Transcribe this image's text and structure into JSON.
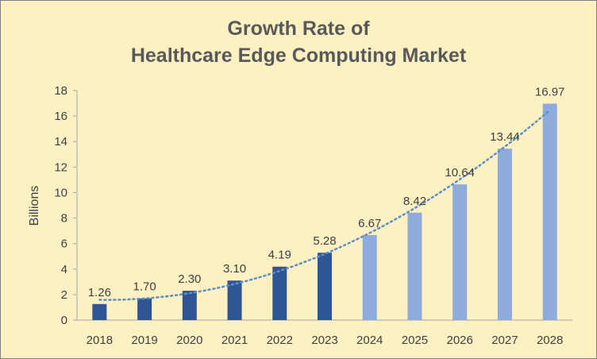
{
  "chart_data": {
    "type": "bar",
    "title_line1": "Growth Rate of",
    "title_line2": "Healthcare Edge Computing Market",
    "xlabel": "",
    "ylabel": "Billions",
    "ylim": [
      0,
      18
    ],
    "yticks": [
      "0",
      "2",
      "4",
      "6",
      "8",
      "10",
      "12",
      "14",
      "16",
      "18"
    ],
    "categories": [
      "2018",
      "2019",
      "2020",
      "2021",
      "2022",
      "2023",
      "2024",
      "2025",
      "2026",
      "2027",
      "2028"
    ],
    "values": [
      1.26,
      1.7,
      2.3,
      3.1,
      4.19,
      5.28,
      6.67,
      8.42,
      10.64,
      13.44,
      16.97
    ],
    "value_labels": [
      "1.26",
      "1.70",
      "2.30",
      "3.10",
      "4.19",
      "5.28",
      "6.67",
      "8.42",
      "10.64",
      "13.44",
      "16.97"
    ],
    "trendline": "dotted",
    "grid": false,
    "legend": "none",
    "colors": {
      "historical_bar": "#2f5597",
      "forecast_bar": "#8faadc",
      "trendline": "#5b8fc7",
      "background": "#fdf0c3"
    }
  }
}
